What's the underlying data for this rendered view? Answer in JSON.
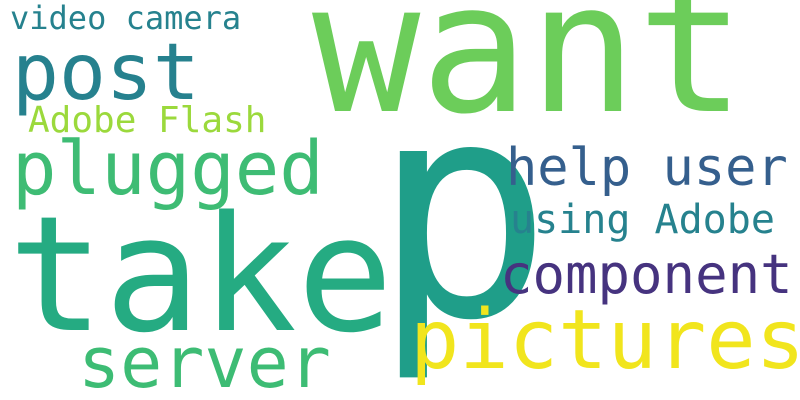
{
  "words": [
    {
      "text": "want",
      "color": "#6ccd5a"
    },
    {
      "text": "p",
      "color": "#1f9e89"
    },
    {
      "text": "take",
      "color": "#25ab82"
    },
    {
      "text": "pictures",
      "color": "#f1e51d"
    },
    {
      "text": "post",
      "color": "#26818e"
    },
    {
      "text": "plugged",
      "color": "#3ebc74"
    },
    {
      "text": "server",
      "color": "#3dbc74"
    },
    {
      "text": "help user",
      "color": "#355f8d"
    },
    {
      "text": "component",
      "color": "#46337f"
    },
    {
      "text": "using Adobe",
      "color": "#26828e"
    },
    {
      "text": "video camera",
      "color": "#26828e"
    },
    {
      "text": "Adobe Flash",
      "color": "#9bd93c"
    }
  ]
}
